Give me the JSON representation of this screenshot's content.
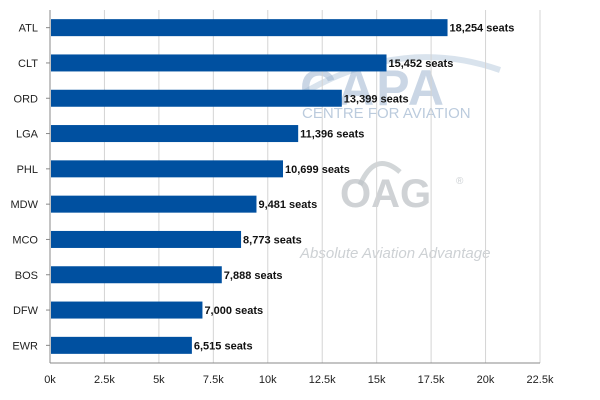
{
  "watermark": {
    "capa": "CAPA",
    "capa_sub": "CENTRE FOR AVIATION",
    "oag": "OAG",
    "oag_tagline": "Absolute Aviation Advantage",
    "registered_mark": "®"
  },
  "colors": {
    "bar": "#0050a0",
    "grid": "#d4d4d4",
    "axis": "#888888",
    "watermark": "#9fb6d0",
    "watermark_gray": "#bfc4c8"
  },
  "chart_data": {
    "type": "bar",
    "orientation": "horizontal",
    "categories": [
      "ATL",
      "CLT",
      "ORD",
      "LGA",
      "PHL",
      "MDW",
      "MCO",
      "BOS",
      "DFW",
      "EWR"
    ],
    "values": [
      18254,
      15452,
      13399,
      11396,
      10699,
      9481,
      8773,
      7888,
      7000,
      6515
    ],
    "data_labels": [
      "18,254 seats",
      "15,452 seats",
      "13,399 seats",
      "11,396 seats",
      "10,699 seats",
      "9,481 seats",
      "8,773 seats",
      "7,888 seats",
      "7,000 seats",
      "6,515 seats"
    ],
    "x_ticks": [
      0,
      2500,
      5000,
      7500,
      10000,
      12500,
      15000,
      17500,
      20000,
      22500
    ],
    "x_tick_labels": [
      "0k",
      "2.5k",
      "5k",
      "7.5k",
      "10k",
      "12.5k",
      "15k",
      "17.5k",
      "20k",
      "22.5k"
    ],
    "xlim": [
      0,
      22500
    ],
    "grid": true,
    "legend": "none",
    "title": "",
    "xlabel": "",
    "ylabel": ""
  }
}
